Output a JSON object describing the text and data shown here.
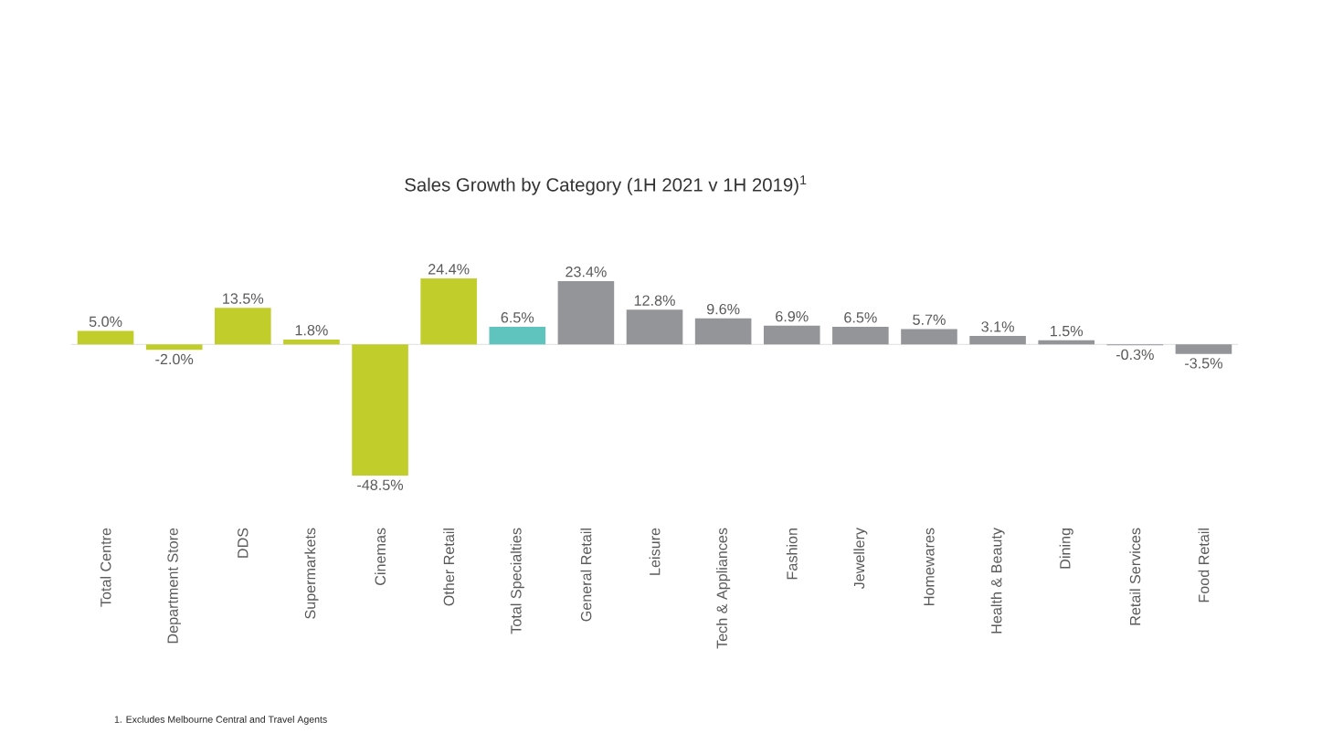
{
  "chart_data": {
    "type": "bar",
    "title": "Sales Growth by Category  (1H 2021 v 1H 2019)$^{1}$",
    "categories": [
      "Total Centre",
      "Department Store",
      "DDS",
      "Supermarkets",
      "Cinemas",
      "Other Retail",
      "Total Specialties",
      "General Retail",
      "Leisure",
      "Tech & Appliances",
      "Fashion",
      "Jewellery",
      "Homewares",
      "Health & Beauty",
      "Dining",
      "Retail Services",
      "Food Retail"
    ],
    "values": [
      5.0,
      -2.0,
      13.5,
      1.8,
      -48.5,
      24.4,
      6.5,
      23.4,
      12.8,
      9.6,
      6.9,
      6.5,
      5.7,
      3.1,
      1.5,
      -0.3,
      -3.5
    ],
    "value_labels": [
      "5.0%",
      "-2.0%",
      "13.5%",
      "1.8%",
      "-48.5%",
      "24.4%",
      "6.5%",
      "23.4%",
      "12.8%",
      "9.6%",
      "6.9%",
      "6.5%",
      "5.7%",
      "3.1%",
      "1.5%",
      "-0.3%",
      "-3.5%"
    ],
    "colors": [
      "#c0cd2b",
      "#c0cd2b",
      "#c0cd2b",
      "#c0cd2b",
      "#c0cd2b",
      "#c0cd2b",
      "#5fc3be",
      "#939598",
      "#939598",
      "#939598",
      "#939598",
      "#939598",
      "#939598",
      "#939598",
      "#939598",
      "#939598",
      "#939598"
    ],
    "annotations": [
      "1.    Excludes Melbourne Central and Travel Agents"
    ]
  }
}
